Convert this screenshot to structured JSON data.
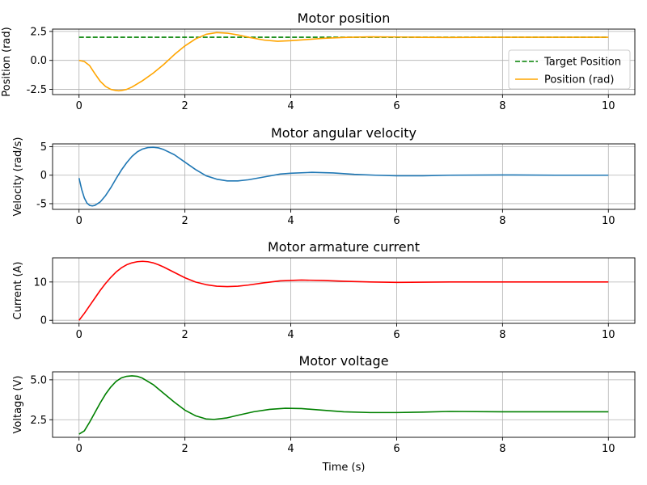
{
  "figure": {
    "xlabel": "Time (s)"
  },
  "chart_data": [
    {
      "type": "line",
      "title": "Motor position",
      "xlabel": "",
      "ylabel": "Position (rad)",
      "xlim": [
        -0.5,
        10.5
      ],
      "ylim": [
        -2.95,
        2.7
      ],
      "x_ticks": [
        0,
        2,
        4,
        6,
        8,
        10
      ],
      "y_ticks": [
        -2.5,
        0.0,
        2.5
      ],
      "grid": true,
      "legend": "center-right",
      "series": [
        {
          "name": "Target Position",
          "color": "#008000",
          "dash": "dashed",
          "x": [
            0,
            10
          ],
          "y": [
            2.0,
            2.0
          ]
        },
        {
          "name": "Position (rad)",
          "color": "#ffa500",
          "dash": "solid",
          "x": [
            0,
            0.1,
            0.2,
            0.3,
            0.4,
            0.5,
            0.6,
            0.7,
            0.75,
            0.8,
            0.9,
            1.0,
            1.2,
            1.4,
            1.6,
            1.8,
            2.0,
            2.2,
            2.4,
            2.6,
            2.8,
            3.0,
            3.2,
            3.5,
            3.75,
            4.0,
            4.3,
            4.6,
            5.0,
            5.5,
            6.0,
            6.5,
            7.0,
            8.0,
            9.0,
            10.0
          ],
          "y": [
            0.0,
            -0.1,
            -0.45,
            -1.15,
            -1.8,
            -2.25,
            -2.5,
            -2.6,
            -2.62,
            -2.6,
            -2.5,
            -2.3,
            -1.75,
            -1.1,
            -0.35,
            0.5,
            1.25,
            1.85,
            2.25,
            2.4,
            2.35,
            2.2,
            2.0,
            1.75,
            1.65,
            1.7,
            1.8,
            1.9,
            1.98,
            2.03,
            2.02,
            1.99,
            1.98,
            2.0,
            2.0,
            2.0
          ]
        }
      ]
    },
    {
      "type": "line",
      "title": "Motor angular velocity",
      "xlabel": "",
      "ylabel": "Velocity (rad/s)",
      "xlim": [
        -0.5,
        10.5
      ],
      "ylim": [
        -6.0,
        5.5
      ],
      "x_ticks": [
        0,
        2,
        4,
        6,
        8,
        10
      ],
      "y_ticks": [
        -5,
        0,
        5
      ],
      "grid": true,
      "series": [
        {
          "name": "",
          "color": "#1f77b4",
          "dash": "solid",
          "x": [
            0,
            0.05,
            0.1,
            0.15,
            0.2,
            0.25,
            0.3,
            0.4,
            0.5,
            0.6,
            0.7,
            0.8,
            0.9,
            1.0,
            1.1,
            1.2,
            1.3,
            1.4,
            1.5,
            1.6,
            1.8,
            2.0,
            2.2,
            2.4,
            2.6,
            2.8,
            3.0,
            3.2,
            3.5,
            3.8,
            4.0,
            4.4,
            4.8,
            5.2,
            5.6,
            6.0,
            6.5,
            7.0,
            8.0,
            9.0,
            10.0
          ],
          "y": [
            -0.5,
            -2.5,
            -4.0,
            -4.9,
            -5.3,
            -5.4,
            -5.3,
            -4.7,
            -3.6,
            -2.2,
            -0.6,
            0.9,
            2.2,
            3.3,
            4.1,
            4.6,
            4.85,
            4.9,
            4.8,
            4.5,
            3.6,
            2.3,
            1.0,
            -0.1,
            -0.7,
            -1.0,
            -1.0,
            -0.8,
            -0.3,
            0.2,
            0.35,
            0.5,
            0.4,
            0.15,
            0.0,
            -0.1,
            -0.1,
            0.0,
            0.05,
            0.0,
            0.0
          ]
        }
      ]
    },
    {
      "type": "line",
      "title": "Motor armature current",
      "xlabel": "",
      "ylabel": "Current (A)",
      "xlim": [
        -0.5,
        10.5
      ],
      "ylim": [
        -0.8,
        16.3
      ],
      "x_ticks": [
        0,
        2,
        4,
        6,
        8,
        10
      ],
      "y_ticks": [
        0,
        10
      ],
      "grid": true,
      "series": [
        {
          "name": "",
          "color": "#ff0000",
          "dash": "solid",
          "x": [
            0,
            0.1,
            0.2,
            0.3,
            0.4,
            0.5,
            0.6,
            0.7,
            0.8,
            0.9,
            1.0,
            1.1,
            1.2,
            1.3,
            1.4,
            1.5,
            1.6,
            1.8,
            2.0,
            2.2,
            2.4,
            2.6,
            2.8,
            3.0,
            3.2,
            3.5,
            3.8,
            4.2,
            4.6,
            5.0,
            5.5,
            6.0,
            6.5,
            7.0,
            8.0,
            9.0,
            10.0
          ],
          "y": [
            0.0,
            1.8,
            3.8,
            5.8,
            7.8,
            9.6,
            11.2,
            12.6,
            13.7,
            14.5,
            15.0,
            15.3,
            15.4,
            15.3,
            15.0,
            14.5,
            13.9,
            12.5,
            11.1,
            10.0,
            9.3,
            8.9,
            8.8,
            8.9,
            9.2,
            9.8,
            10.3,
            10.5,
            10.4,
            10.2,
            10.0,
            9.9,
            9.95,
            10.0,
            10.0,
            10.0,
            10.0
          ]
        }
      ]
    },
    {
      "type": "line",
      "title": "Motor voltage",
      "xlabel": "Time (s)",
      "ylabel": "Voltage (V)",
      "xlim": [
        -0.5,
        10.5
      ],
      "ylim": [
        1.4,
        5.5
      ],
      "x_ticks": [
        0,
        2,
        4,
        6,
        8,
        10
      ],
      "y_ticks": [
        2.5,
        5.0
      ],
      "grid": true,
      "series": [
        {
          "name": "",
          "color": "#008000",
          "dash": "solid",
          "x": [
            0,
            0.1,
            0.2,
            0.3,
            0.4,
            0.5,
            0.6,
            0.7,
            0.8,
            0.9,
            1.0,
            1.1,
            1.2,
            1.4,
            1.6,
            1.8,
            2.0,
            2.2,
            2.4,
            2.55,
            2.8,
            3.0,
            3.3,
            3.6,
            3.9,
            4.2,
            4.6,
            5.0,
            5.5,
            6.0,
            6.5,
            7.0,
            8.0,
            9.0,
            10.0
          ],
          "y": [
            1.6,
            1.8,
            2.35,
            2.95,
            3.55,
            4.1,
            4.55,
            4.9,
            5.12,
            5.22,
            5.25,
            5.22,
            5.1,
            4.7,
            4.15,
            3.6,
            3.1,
            2.75,
            2.55,
            2.52,
            2.62,
            2.78,
            3.0,
            3.15,
            3.22,
            3.2,
            3.1,
            3.0,
            2.95,
            2.95,
            2.98,
            3.02,
            3.0,
            3.0,
            3.0
          ]
        }
      ]
    }
  ]
}
